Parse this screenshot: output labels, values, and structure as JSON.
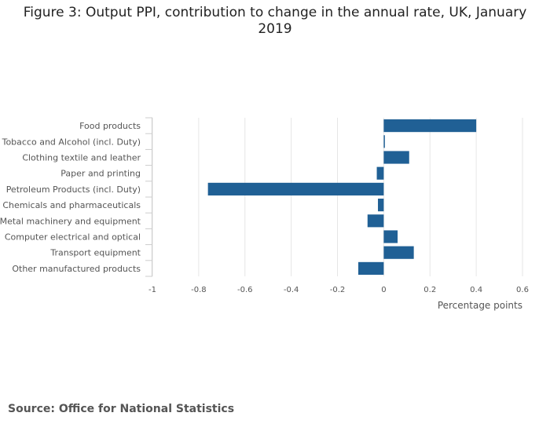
{
  "title": "Figure 3: Output PPI, contribution to change in the annual rate, UK, January 2019",
  "source": "Source: Office for National Statistics",
  "colors": {
    "bar": "#206095",
    "grid": "#e6e6e6",
    "axis": "#cccccc",
    "text": "#555555"
  },
  "chart_data": {
    "type": "bar",
    "orientation": "horizontal",
    "title": "Figure 3: Output PPI, contribution to change in the annual rate, UK, January 2019",
    "categories": [
      "Food products",
      "Tobacco and Alcohol (incl. Duty)",
      "Clothing textile and leather",
      "Paper and printing",
      "Petroleum Products (incl. Duty)",
      "Chemicals and pharmaceuticals",
      "Metal machinery and equipment",
      "Computer electrical and optical",
      "Transport equipment",
      "Other manufactured products"
    ],
    "values": [
      0.4,
      0.005,
      0.11,
      -0.03,
      -0.76,
      -0.025,
      -0.07,
      0.06,
      0.13,
      -0.11
    ],
    "xlabel": "Percentage points",
    "ylabel": "",
    "xlim": [
      -1,
      0.6
    ],
    "xticks": [
      -1,
      -0.8,
      -0.6,
      -0.4,
      -0.2,
      0,
      0.2,
      0.4,
      0.6
    ],
    "xtick_labels": [
      "-1",
      "-0.8",
      "-0.6",
      "-0.4",
      "-0.2",
      "0",
      "0.2",
      "0.4",
      "0.6"
    ],
    "grid": true,
    "legend": "none"
  }
}
